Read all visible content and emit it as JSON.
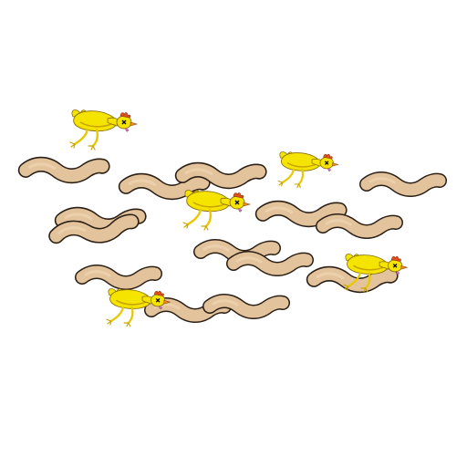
{
  "scene": {
    "background_color": "#ffffff",
    "worm_count": 14,
    "chicken_count": 5,
    "chicken_state": "dead",
    "colors": {
      "worm_fill": "#e3c39b",
      "worm_outline": "#2a1f15",
      "chicken_body": "#f4e400",
      "chicken_shade": "#c9a400",
      "chicken_beak": "#f08a1a",
      "chicken_comb": "#e6501c",
      "chicken_eye_x": "#000000"
    },
    "icons": {
      "worm": "worm-sprite",
      "chicken": "dead-chicken-sprite"
    }
  }
}
